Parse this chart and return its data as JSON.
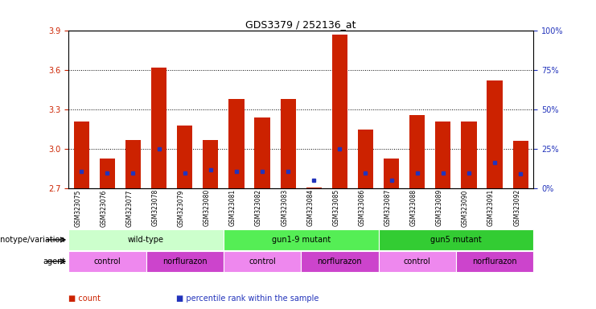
{
  "title": "GDS3379 / 252136_at",
  "samples": [
    "GSM323075",
    "GSM323076",
    "GSM323077",
    "GSM323078",
    "GSM323079",
    "GSM323080",
    "GSM323081",
    "GSM323082",
    "GSM323083",
    "GSM323084",
    "GSM323085",
    "GSM323086",
    "GSM323087",
    "GSM323088",
    "GSM323089",
    "GSM323090",
    "GSM323091",
    "GSM323092"
  ],
  "red_values": [
    3.21,
    2.93,
    3.07,
    3.62,
    3.18,
    3.07,
    3.38,
    3.24,
    3.38,
    2.71,
    3.87,
    3.15,
    2.93,
    3.26,
    3.21,
    3.21,
    3.52,
    3.06
  ],
  "blue_values": [
    2.83,
    2.82,
    2.82,
    3.0,
    2.82,
    2.84,
    2.83,
    2.83,
    2.83,
    2.76,
    3.0,
    2.82,
    2.76,
    2.82,
    2.82,
    2.82,
    2.9,
    2.81
  ],
  "y_min": 2.7,
  "y_max": 3.9,
  "y_ticks_red": [
    2.7,
    3.0,
    3.3,
    3.6,
    3.9
  ],
  "y_ticks_blue": [
    0,
    25,
    50,
    75,
    100
  ],
  "bar_color": "#cc2200",
  "blue_color": "#2233bb",
  "bg_color": "#ffffff",
  "genotype_groups": [
    {
      "label": "wild-type",
      "start": 0,
      "end": 5,
      "color": "#ccffcc"
    },
    {
      "label": "gun1-9 mutant",
      "start": 6,
      "end": 11,
      "color": "#55ee55"
    },
    {
      "label": "gun5 mutant",
      "start": 12,
      "end": 17,
      "color": "#33cc33"
    }
  ],
  "agent_groups": [
    {
      "label": "control",
      "start": 0,
      "end": 2,
      "color": "#ee88ee"
    },
    {
      "label": "norflurazon",
      "start": 3,
      "end": 5,
      "color": "#cc44cc"
    },
    {
      "label": "control",
      "start": 6,
      "end": 8,
      "color": "#ee88ee"
    },
    {
      "label": "norflurazon",
      "start": 9,
      "end": 11,
      "color": "#cc44cc"
    },
    {
      "label": "control",
      "start": 12,
      "end": 14,
      "color": "#ee88ee"
    },
    {
      "label": "norflurazon",
      "start": 15,
      "end": 17,
      "color": "#cc44cc"
    }
  ],
  "legend_labels": [
    "count",
    "percentile rank within the sample"
  ],
  "legend_colors": [
    "#cc2200",
    "#2233bb"
  ]
}
